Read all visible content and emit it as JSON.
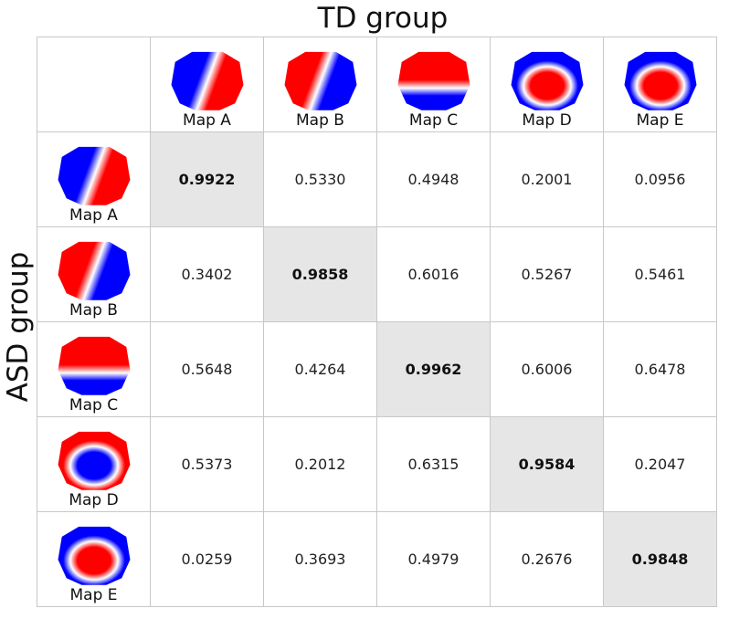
{
  "chart_data": {
    "type": "heatmap",
    "xlabel": "TD group",
    "ylabel": "ASD group",
    "columns": [
      "Map A",
      "Map B",
      "Map C",
      "Map D",
      "Map E"
    ],
    "rows": [
      "Map A",
      "Map B",
      "Map C",
      "Map D",
      "Map E"
    ],
    "values": [
      [
        "0.9922",
        "0.5330",
        "0.4948",
        "0.2001",
        "0.0956"
      ],
      [
        "0.3402",
        "0.9858",
        "0.6016",
        "0.5267",
        "0.5461"
      ],
      [
        "0.5648",
        "0.4264",
        "0.9962",
        "0.6006",
        "0.6478"
      ],
      [
        "0.5373",
        "0.2012",
        "0.6315",
        "0.9584",
        "0.2047"
      ],
      [
        "0.0259",
        "0.3693",
        "0.4979",
        "0.2676",
        "0.9848"
      ]
    ],
    "highlight": "diagonal",
    "colors": {
      "positive": "#ff0000",
      "negative": "#0000ff",
      "neutral": "#ffffff",
      "highlight": "#e6e6e6"
    },
    "maps": {
      "td": [
        "diagonal-split-red-right",
        "diagonal-split-red-left",
        "red-top-blue-bottom",
        "blue-rim-red-center",
        "blue-rim-red-center"
      ],
      "asd": [
        "diagonal-split-red-right",
        "diagonal-split-red-left",
        "red-top-blue-bottom",
        "red-rim-blue-center",
        "blue-rim-red-center"
      ]
    }
  }
}
